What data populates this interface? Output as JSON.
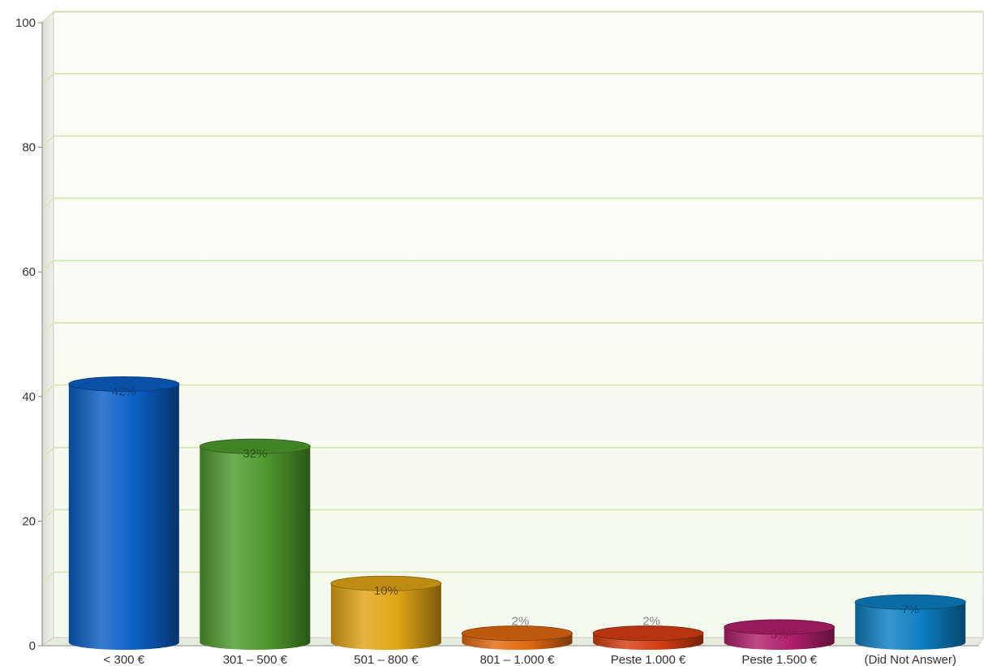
{
  "chart_data": {
    "type": "bar",
    "categories": [
      "< 300 €",
      "301 – 500 €",
      "501 – 800 €",
      "801 – 1.000 €",
      "Peste 1.000 €",
      "Peste 1.500 €",
      "(Did Not Answer)"
    ],
    "values": [
      42,
      32,
      10,
      2,
      2,
      3,
      7
    ],
    "data_labels": [
      "42%",
      "32%",
      "10%",
      "2%",
      "2%",
      "3%",
      "7%"
    ],
    "ylim": [
      0,
      100
    ],
    "yticks": [
      0,
      20,
      40,
      60,
      80,
      100
    ],
    "yticks_labels": [
      "0",
      "20",
      "40",
      "60",
      "80",
      "100"
    ],
    "minor_grid_step": 10,
    "grid": true,
    "bar_style": "3d-cylinder",
    "colors": [
      "#0b5fc4",
      "#4e9a2e",
      "#e0a516",
      "#e06a12",
      "#d43e12",
      "#b0206a",
      "#0d7fc2"
    ],
    "label_colors": [
      "#1a3f7a",
      "#2a5a1a",
      "#6a4a00",
      "#777777",
      "#777777",
      "#8a1a50",
      "#0a4f7a"
    ],
    "title": "",
    "xlabel": "",
    "ylabel": ""
  }
}
